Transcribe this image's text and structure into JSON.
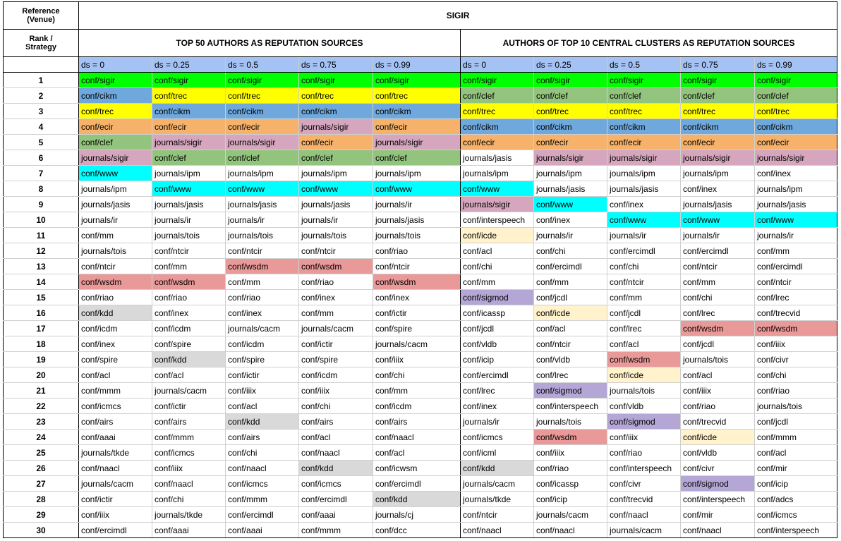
{
  "header": {
    "reference_label_line1": "Reference",
    "reference_label_line2": "(Venue)",
    "venue": "SIGIR",
    "rank_label_line1": "Rank /",
    "rank_label_line2": "Strategy",
    "group1": "TOP 50 AUTHORS AS REPUTATION SOURCES",
    "group2": "AUTHORS OF TOP 10 CENTRAL CLUSTERS AS REPUTATION SOURCES",
    "ds_labels": [
      "ds = 0",
      "ds = 0.25",
      "ds = 0.5",
      "ds = 0.75",
      "ds = 0.99",
      "ds = 0",
      "ds = 0.25",
      "ds = 0.5",
      "ds = 0.75",
      "ds = 0.99"
    ]
  },
  "colors": {
    "conf/sigir": "#00ff00",
    "conf/trec": "#ffff00",
    "conf/cikm": "#6fa8dc",
    "conf/ecir": "#f6b26b",
    "conf/clef": "#93c47d",
    "journals/sigir": "#d5a6bd",
    "conf/www": "#00ffff",
    "conf/wsdm": "#ea9999",
    "conf/kdd": "#d9d9d9",
    "conf/sigmod": "#b4a7d6",
    "conf/icde": "#fff2cc"
  },
  "rows": [
    {
      "rank": "1",
      "cells": [
        "conf/sigir",
        "conf/sigir",
        "conf/sigir",
        "conf/sigir",
        "conf/sigir",
        "conf/sigir",
        "conf/sigir",
        "conf/sigir",
        "conf/sigir",
        "conf/sigir"
      ]
    },
    {
      "rank": "2",
      "cells": [
        "conf/cikm",
        "conf/trec",
        "conf/trec",
        "conf/trec",
        "conf/trec",
        "conf/clef",
        "conf/clef",
        "conf/clef",
        "conf/clef",
        "conf/clef"
      ]
    },
    {
      "rank": "3",
      "cells": [
        "conf/trec",
        "conf/cikm",
        "conf/cikm",
        "conf/cikm",
        "conf/cikm",
        "conf/trec",
        "conf/trec",
        "conf/trec",
        "conf/trec",
        "conf/trec"
      ]
    },
    {
      "rank": "4",
      "cells": [
        "conf/ecir",
        "conf/ecir",
        "conf/ecir",
        "journals/sigir",
        "conf/ecir",
        "conf/cikm",
        "conf/cikm",
        "conf/cikm",
        "conf/cikm",
        "conf/cikm"
      ]
    },
    {
      "rank": "5",
      "cells": [
        "conf/clef",
        "journals/sigir",
        "journals/sigir",
        "conf/ecir",
        "journals/sigir",
        "conf/ecir",
        "conf/ecir",
        "conf/ecir",
        "conf/ecir",
        "conf/ecir"
      ]
    },
    {
      "rank": "6",
      "cells": [
        "journals/sigir",
        "conf/clef",
        "conf/clef",
        "conf/clef",
        "conf/clef",
        "journals/jasis",
        "journals/sigir",
        "journals/sigir",
        "journals/sigir",
        "journals/sigir"
      ]
    },
    {
      "rank": "7",
      "cells": [
        "conf/www",
        "journals/ipm",
        "journals/ipm",
        "journals/ipm",
        "journals/ipm",
        "journals/ipm",
        "journals/ipm",
        "journals/ipm",
        "journals/ipm",
        "conf/inex"
      ]
    },
    {
      "rank": "8",
      "cells": [
        "journals/ipm",
        "conf/www",
        "conf/www",
        "conf/www",
        "conf/www",
        "conf/www",
        "journals/jasis",
        "journals/jasis",
        "conf/inex",
        "journals/ipm"
      ]
    },
    {
      "rank": "9",
      "cells": [
        "journals/jasis",
        "journals/jasis",
        "journals/jasis",
        "journals/jasis",
        "journals/ir",
        "journals/sigir",
        "conf/www",
        "conf/inex",
        "journals/jasis",
        "journals/jasis"
      ]
    },
    {
      "rank": "10",
      "cells": [
        "journals/ir",
        "journals/ir",
        "journals/ir",
        "journals/ir",
        "journals/jasis",
        "conf/interspeech",
        "conf/inex",
        "conf/www",
        "conf/www",
        "conf/www"
      ]
    },
    {
      "rank": "11",
      "cells": [
        "conf/mm",
        "journals/tois",
        "journals/tois",
        "journals/tois",
        "journals/tois",
        "conf/icde",
        "journals/ir",
        "journals/ir",
        "journals/ir",
        "journals/ir"
      ]
    },
    {
      "rank": "12",
      "cells": [
        "journals/tois",
        "conf/ntcir",
        "conf/ntcir",
        "conf/ntcir",
        "conf/riao",
        "conf/acl",
        "conf/chi",
        "conf/ercimdl",
        "conf/ercimdl",
        "conf/mm"
      ]
    },
    {
      "rank": "13",
      "cells": [
        "conf/ntcir",
        "conf/mm",
        "conf/wsdm",
        "conf/wsdm",
        "conf/ntcir",
        "conf/chi",
        "conf/ercimdl",
        "conf/chi",
        "conf/ntcir",
        "conf/ercimdl"
      ]
    },
    {
      "rank": "14",
      "cells": [
        "conf/wsdm",
        "conf/wsdm",
        "conf/mm",
        "conf/riao",
        "conf/wsdm",
        "conf/mm",
        "conf/mm",
        "conf/ntcir",
        "conf/mm",
        "conf/ntcir"
      ]
    },
    {
      "rank": "15",
      "cells": [
        "conf/riao",
        "conf/riao",
        "conf/riao",
        "conf/inex",
        "conf/inex",
        "conf/sigmod",
        "conf/jcdl",
        "conf/mm",
        "conf/chi",
        "conf/lrec"
      ]
    },
    {
      "rank": "16",
      "cells": [
        "conf/kdd",
        "conf/inex",
        "conf/inex",
        "conf/mm",
        "conf/ictir",
        "conf/icassp",
        "conf/icde",
        "conf/jcdl",
        "conf/lrec",
        "conf/trecvid"
      ]
    },
    {
      "rank": "17",
      "cells": [
        "conf/icdm",
        "conf/icdm",
        "journals/cacm",
        "journals/cacm",
        "conf/spire",
        "conf/jcdl",
        "conf/acl",
        "conf/lrec",
        "conf/wsdm",
        "conf/wsdm"
      ]
    },
    {
      "rank": "18",
      "cells": [
        "conf/inex",
        "conf/spire",
        "conf/icdm",
        "conf/ictir",
        "journals/cacm",
        "conf/vldb",
        "conf/ntcir",
        "conf/acl",
        "conf/jcdl",
        "conf/iiix"
      ]
    },
    {
      "rank": "19",
      "cells": [
        "conf/spire",
        "conf/kdd",
        "conf/spire",
        "conf/spire",
        "conf/iiix",
        "conf/icip",
        "conf/vldb",
        "conf/wsdm",
        "journals/tois",
        "conf/civr"
      ]
    },
    {
      "rank": "20",
      "cells": [
        "conf/acl",
        "conf/acl",
        "conf/ictir",
        "conf/icdm",
        "conf/chi",
        "conf/ercimdl",
        "conf/lrec",
        "conf/icde",
        "conf/acl",
        "conf/chi"
      ]
    },
    {
      "rank": "21",
      "cells": [
        "conf/mmm",
        "journals/cacm",
        "conf/iiix",
        "conf/iiix",
        "conf/mm",
        "conf/lrec",
        "conf/sigmod",
        "journals/tois",
        "conf/iiix",
        "conf/riao"
      ]
    },
    {
      "rank": "22",
      "cells": [
        "conf/icmcs",
        "conf/ictir",
        "conf/acl",
        "conf/chi",
        "conf/icdm",
        "conf/inex",
        "conf/interspeech",
        "conf/vldb",
        "conf/riao",
        "journals/tois"
      ]
    },
    {
      "rank": "23",
      "cells": [
        "conf/airs",
        "conf/airs",
        "conf/kdd",
        "conf/airs",
        "conf/airs",
        "journals/ir",
        "journals/tois",
        "conf/sigmod",
        "conf/trecvid",
        "conf/jcdl"
      ]
    },
    {
      "rank": "24",
      "cells": [
        "conf/aaai",
        "conf/mmm",
        "conf/airs",
        "conf/acl",
        "conf/naacl",
        "conf/icmcs",
        "conf/wsdm",
        "conf/iiix",
        "conf/icde",
        "conf/mmm"
      ]
    },
    {
      "rank": "25",
      "cells": [
        "journals/tkde",
        "conf/icmcs",
        "conf/chi",
        "conf/naacl",
        "conf/acl",
        "conf/icml",
        "conf/iiix",
        "conf/riao",
        "conf/vldb",
        "conf/acl"
      ]
    },
    {
      "rank": "26",
      "cells": [
        "conf/naacl",
        "conf/iiix",
        "conf/naacl",
        "conf/kdd",
        "conf/icwsm",
        "conf/kdd",
        "conf/riao",
        "conf/interspeech",
        "conf/civr",
        "conf/mir"
      ]
    },
    {
      "rank": "27",
      "cells": [
        "journals/cacm",
        "conf/naacl",
        "conf/icmcs",
        "conf/icmcs",
        "conf/ercimdl",
        "journals/cacm",
        "conf/icassp",
        "conf/civr",
        "conf/sigmod",
        "conf/icip"
      ]
    },
    {
      "rank": "28",
      "cells": [
        "conf/ictir",
        "conf/chi",
        "conf/mmm",
        "conf/ercimdl",
        "conf/kdd",
        "journals/tkde",
        "conf/icip",
        "conf/trecvid",
        "conf/interspeech",
        "conf/adcs"
      ]
    },
    {
      "rank": "29",
      "cells": [
        "conf/iiix",
        "journals/tkde",
        "conf/ercimdl",
        "conf/aaai",
        "journals/cj",
        "conf/ntcir",
        "journals/cacm",
        "conf/naacl",
        "conf/mir",
        "conf/icmcs"
      ]
    },
    {
      "rank": "30",
      "cells": [
        "conf/ercimdl",
        "conf/aaai",
        "conf/aaai",
        "conf/mmm",
        "conf/dcc",
        "conf/naacl",
        "conf/naacl",
        "journals/cacm",
        "conf/naacl",
        "conf/interspeech"
      ]
    }
  ]
}
